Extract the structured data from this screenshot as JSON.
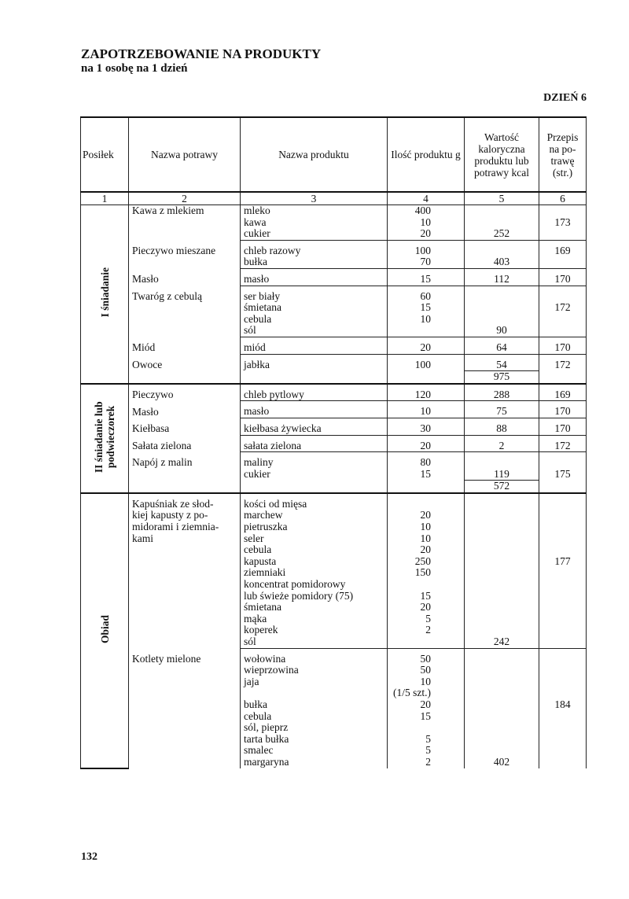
{
  "title": "ZAPOTRZEBOWANIE NA PRODUKTY",
  "subtitle": "na 1 osobę na 1 dzień",
  "day": "DZIEŃ 6",
  "headers": [
    "Posiłek",
    "Nazwa potrawy",
    "Nazwa produktu",
    "Ilość produktu g",
    "Wartość kaloryczna produktu lub potrawy kcal",
    "Przepis na po-trawę (str.)"
  ],
  "column_numbers": [
    "1",
    "2",
    "3",
    "4",
    "5",
    "6"
  ],
  "sections": [
    {
      "label": "I śniadanie",
      "rows": [
        {
          "dish": "Kawa z mlekiem",
          "product": "mleko",
          "qty": "400",
          "kcal": "",
          "page": ""
        },
        {
          "dish": "",
          "product": "kawa",
          "qty": "10",
          "kcal": "",
          "page": "173"
        },
        {
          "dish": "",
          "product": "cukier",
          "qty": "20",
          "kcal": "252",
          "page": "",
          "sep": true
        },
        {
          "dish": "Pieczywo mieszane",
          "product": "chleb razowy",
          "qty": "100",
          "kcal": "",
          "page": "169",
          "gap": true
        },
        {
          "dish": "",
          "product": "bułka",
          "qty": "70",
          "kcal": "403",
          "page": "",
          "sep": true
        },
        {
          "dish": "Masło",
          "product": "masło",
          "qty": "15",
          "kcal": "112",
          "page": "170",
          "sep": true,
          "gap": true
        },
        {
          "dish": "Twaróg z cebulą",
          "product": "ser biały",
          "qty": "60",
          "kcal": "",
          "page": "",
          "gap": true
        },
        {
          "dish": "",
          "product": "śmietana",
          "qty": "15",
          "kcal": "",
          "page": "172"
        },
        {
          "dish": "",
          "product": "cebula",
          "qty": "10",
          "kcal": "",
          "page": ""
        },
        {
          "dish": "",
          "product": "sól",
          "qty": "",
          "kcal": "90",
          "page": "",
          "sep": true
        },
        {
          "dish": "Miód",
          "product": "miód",
          "qty": "20",
          "kcal": "64",
          "page": "170",
          "sep": true,
          "gap": true
        },
        {
          "dish": "Owoce",
          "product": "jabłka",
          "qty": "100",
          "kcal": "54",
          "page": "172",
          "gap": true
        },
        {
          "dish": "",
          "product": "",
          "qty": "",
          "kcal": "975",
          "page": "",
          "total": true
        }
      ]
    },
    {
      "label": "II śniadanie lub podwieczorek",
      "rows": [
        {
          "dish": "Pieczywo",
          "product": "chleb pytlowy",
          "qty": "120",
          "kcal": "288",
          "page": "169",
          "sep": true,
          "gap": true
        },
        {
          "dish": "Masło",
          "product": "masło",
          "qty": "10",
          "kcal": "75",
          "page": "170",
          "sep": true,
          "gap": true
        },
        {
          "dish": "Kiełbasa",
          "product": "kiełbasa żywiecka",
          "qty": "30",
          "kcal": "88",
          "page": "170",
          "sep": true,
          "gap": true
        },
        {
          "dish": "Sałata zielona",
          "product": "sałata zielona",
          "qty": "20",
          "kcal": "2",
          "page": "172",
          "sep": true,
          "gap": true
        },
        {
          "dish": "Napój z malin",
          "product": "maliny",
          "qty": "80",
          "kcal": "",
          "page": "",
          "gap": true
        },
        {
          "dish": "",
          "product": "cukier",
          "qty": "15",
          "kcal": "119",
          "page": "175"
        },
        {
          "dish": "",
          "product": "",
          "qty": "",
          "kcal": "572",
          "page": "",
          "total": true
        }
      ]
    },
    {
      "label": "Obiad",
      "rows": [
        {
          "dish": "Kapuśniak ze słod-",
          "product": "kości od mięsa",
          "qty": "",
          "kcal": "",
          "page": "",
          "gap": true
        },
        {
          "dish": "kiej kapusty z po-",
          "product": "marchew",
          "qty": "20",
          "kcal": "",
          "page": ""
        },
        {
          "dish": "midorami i ziemnia-",
          "product": "pietruszka",
          "qty": "10",
          "kcal": "",
          "page": ""
        },
        {
          "dish": "kami",
          "product": "seler",
          "qty": "10",
          "kcal": "",
          "page": ""
        },
        {
          "dish": "",
          "product": "cebula",
          "qty": "20",
          "kcal": "",
          "page": ""
        },
        {
          "dish": "",
          "product": "kapusta",
          "qty": "250",
          "kcal": "",
          "page": "177"
        },
        {
          "dish": "",
          "product": "ziemniaki",
          "qty": "150",
          "kcal": "",
          "page": ""
        },
        {
          "dish": "",
          "product": "koncentrat pomidorowy",
          "qty": "",
          "kcal": "",
          "page": ""
        },
        {
          "dish": "",
          "product": "lub świeże pomidory (75)",
          "qty": "15",
          "kcal": "",
          "page": ""
        },
        {
          "dish": "",
          "product": "śmietana",
          "qty": "20",
          "kcal": "",
          "page": ""
        },
        {
          "dish": "",
          "product": "mąka",
          "qty": "5",
          "kcal": "",
          "page": ""
        },
        {
          "dish": "",
          "product": "koperek",
          "qty": "2",
          "kcal": "",
          "page": ""
        },
        {
          "dish": "",
          "product": "sól",
          "qty": "",
          "kcal": "242",
          "page": "",
          "sep": true
        },
        {
          "dish": "Kotlety mielone",
          "product": "wołowina",
          "qty": "50",
          "kcal": "",
          "page": "",
          "gap": true
        },
        {
          "dish": "",
          "product": "wieprzowina",
          "qty": "50",
          "kcal": "",
          "page": ""
        },
        {
          "dish": "",
          "product": "jaja",
          "qty": "10",
          "kcal": "",
          "page": ""
        },
        {
          "dish": "",
          "product": "",
          "qty": "(1/5 szt.)",
          "kcal": "",
          "page": ""
        },
        {
          "dish": "",
          "product": "bułka",
          "qty": "20",
          "kcal": "",
          "page": "184"
        },
        {
          "dish": "",
          "product": "cebula",
          "qty": "15",
          "kcal": "",
          "page": ""
        },
        {
          "dish": "",
          "product": "sól, pieprz",
          "qty": "",
          "kcal": "",
          "page": ""
        },
        {
          "dish": "",
          "product": "tarta bułka",
          "qty": "5",
          "kcal": "",
          "page": ""
        },
        {
          "dish": "",
          "product": "smalec",
          "qty": "5",
          "kcal": "",
          "page": ""
        },
        {
          "dish": "",
          "product": "margaryna",
          "qty": "2",
          "kcal": "402",
          "page": ""
        }
      ]
    }
  ],
  "page_number": "132"
}
